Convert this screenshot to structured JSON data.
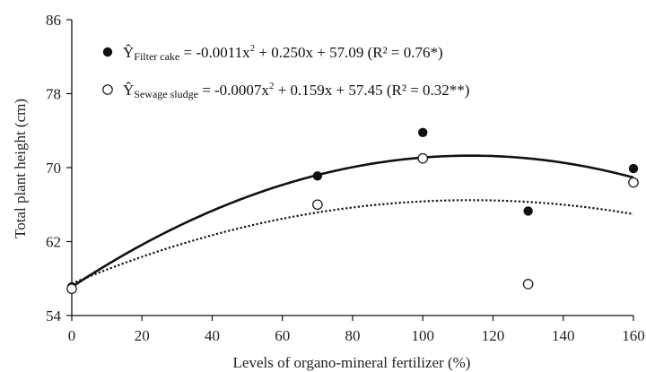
{
  "chart_data": {
    "type": "scatter",
    "title": "",
    "xlabel": "Levels of organo-mineral fertilizer (%)",
    "ylabel": "Total plant height (cm)",
    "xlim": [
      0,
      160
    ],
    "ylim": [
      54,
      86
    ],
    "xticks": [
      0,
      20,
      40,
      60,
      80,
      100,
      120,
      140,
      160
    ],
    "yticks": [
      54,
      62,
      70,
      78,
      86
    ],
    "xtick_labels": [
      "0",
      "20",
      "40",
      "60",
      "80",
      "100",
      "120",
      "140",
      "160"
    ],
    "ytick_labels": [
      "54",
      "62",
      "70",
      "78",
      "86"
    ],
    "grid": false,
    "legend_position": "top-left",
    "series": [
      {
        "name": "Filter cake",
        "marker": "filled-circle",
        "line": "solid",
        "x": [
          0,
          70,
          100,
          130,
          160
        ],
        "y": [
          57.1,
          69.1,
          73.8,
          65.3,
          69.9
        ],
        "fit": {
          "a": -0.0011,
          "b": 0.25,
          "c": 57.09
        },
        "legend": {
          "yhat": "Ŷ",
          "sub": "Filter cake",
          "eq_pre": " = -0.0011x",
          "sup": "2",
          "eq_post": " + 0.250x + 57.09 (R² = 0.76*)"
        }
      },
      {
        "name": "Sewage sludge",
        "marker": "open-circle",
        "line": "dotted",
        "x": [
          0,
          70,
          100,
          130,
          160
        ],
        "y": [
          56.9,
          66.0,
          71.0,
          57.4,
          68.4
        ],
        "fit": {
          "a": -0.0007,
          "b": 0.159,
          "c": 57.45
        },
        "legend": {
          "yhat": "Ŷ",
          "sub": "Sewage sludge",
          "eq_pre": " = -0.0007x",
          "sup": "2",
          "eq_post": " + 0.159x + 57.45 (R² = 0.32**)"
        }
      }
    ]
  },
  "colors": {
    "ink": "#111111",
    "marker_open_fill": "#ffffff"
  }
}
